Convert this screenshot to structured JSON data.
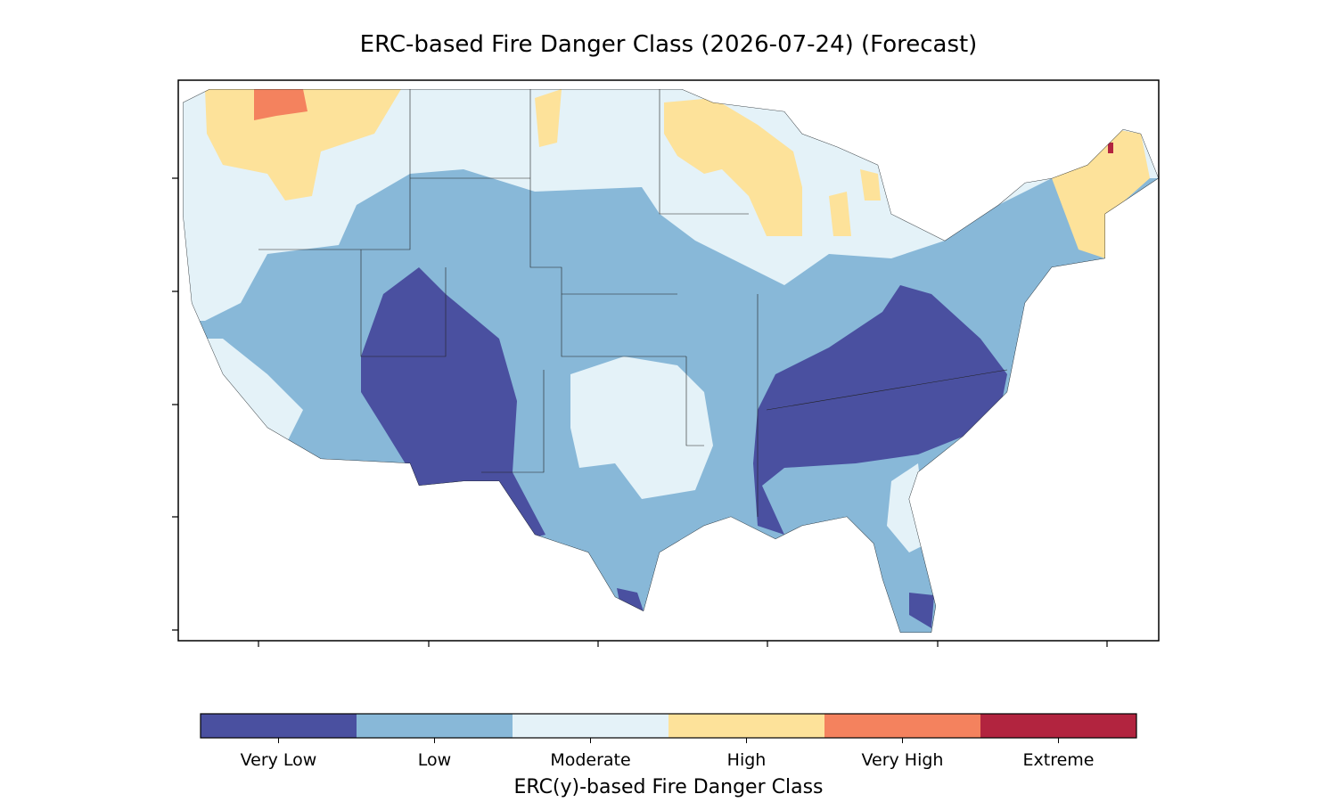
{
  "title": "ERC-based Fire Danger Class (2026-07-24) (Forecast)",
  "legend": {
    "title": "ERC(y)-based Fire Danger Class",
    "classes": [
      {
        "label": "Very Low",
        "color": "#4a50a0"
      },
      {
        "label": "Low",
        "color": "#88b8d8"
      },
      {
        "label": "Moderate",
        "color": "#e4f2f8"
      },
      {
        "label": "High",
        "color": "#fde29a"
      },
      {
        "label": "Very High",
        "color": "#f4825e"
      },
      {
        "label": "Extreme",
        "color": "#b2243f"
      }
    ]
  }
}
